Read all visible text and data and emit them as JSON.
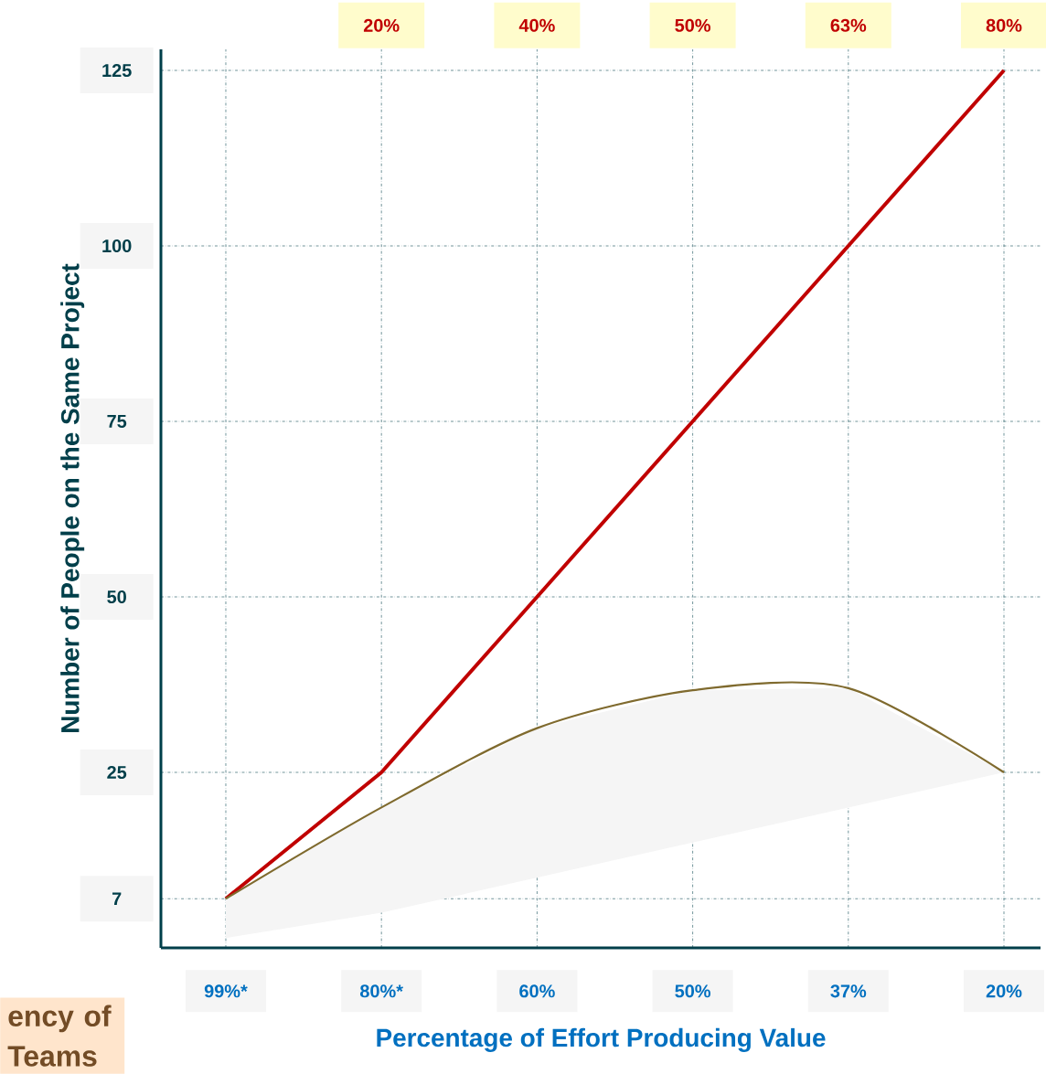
{
  "chart_data": {
    "type": "line",
    "xlabel": "Percentage of Effort Producing Value",
    "ylabel": "Number of People on the Same Project",
    "annotations": [
      "ency of Teams",
      "20%",
      "40%",
      "50%",
      "63%",
      "80%"
    ],
    "categories": [
      "99%*",
      "80%*",
      "60%",
      "50%",
      "37%",
      "20%"
    ],
    "ylim": [
      0,
      128
    ],
    "yticks": [
      7,
      25,
      50,
      75,
      100,
      125
    ],
    "grid": true,
    "marker": "none",
    "series": [
      {
        "color": "#c00000",
        "values": [
          7,
          25,
          50,
          75,
          100,
          125
        ]
      },
      {
        "color": "#7f6a2e",
        "values": [
          7,
          20,
          31.3,
          36.7,
          37,
          25
        ],
        "lower": [
          1.4,
          5,
          10,
          15,
          20,
          25
        ],
        "upper": [
          7,
          20,
          31.3,
          36.7,
          37,
          25
        ]
      }
    ]
  }
}
